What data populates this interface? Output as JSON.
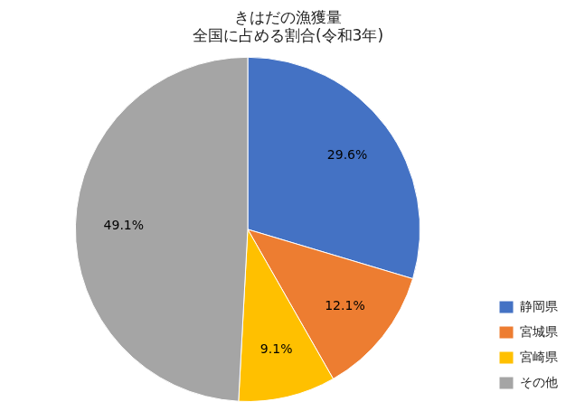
{
  "chart_data": {
    "type": "pie",
    "title": "きはだの漁獲量\n全国に占める割合(令和3年)",
    "categories": [
      "静岡県",
      "宮城県",
      "宮崎県",
      "その他"
    ],
    "values": [
      29.6,
      12.1,
      9.1,
      49.1
    ],
    "value_labels": [
      "29.6%",
      "12.1%",
      "9.1%",
      "49.1%"
    ],
    "colors": [
      "#4472C4",
      "#ED7D31",
      "#FFC000",
      "#A5A5A5"
    ],
    "data_labels": true,
    "legend": "right"
  }
}
